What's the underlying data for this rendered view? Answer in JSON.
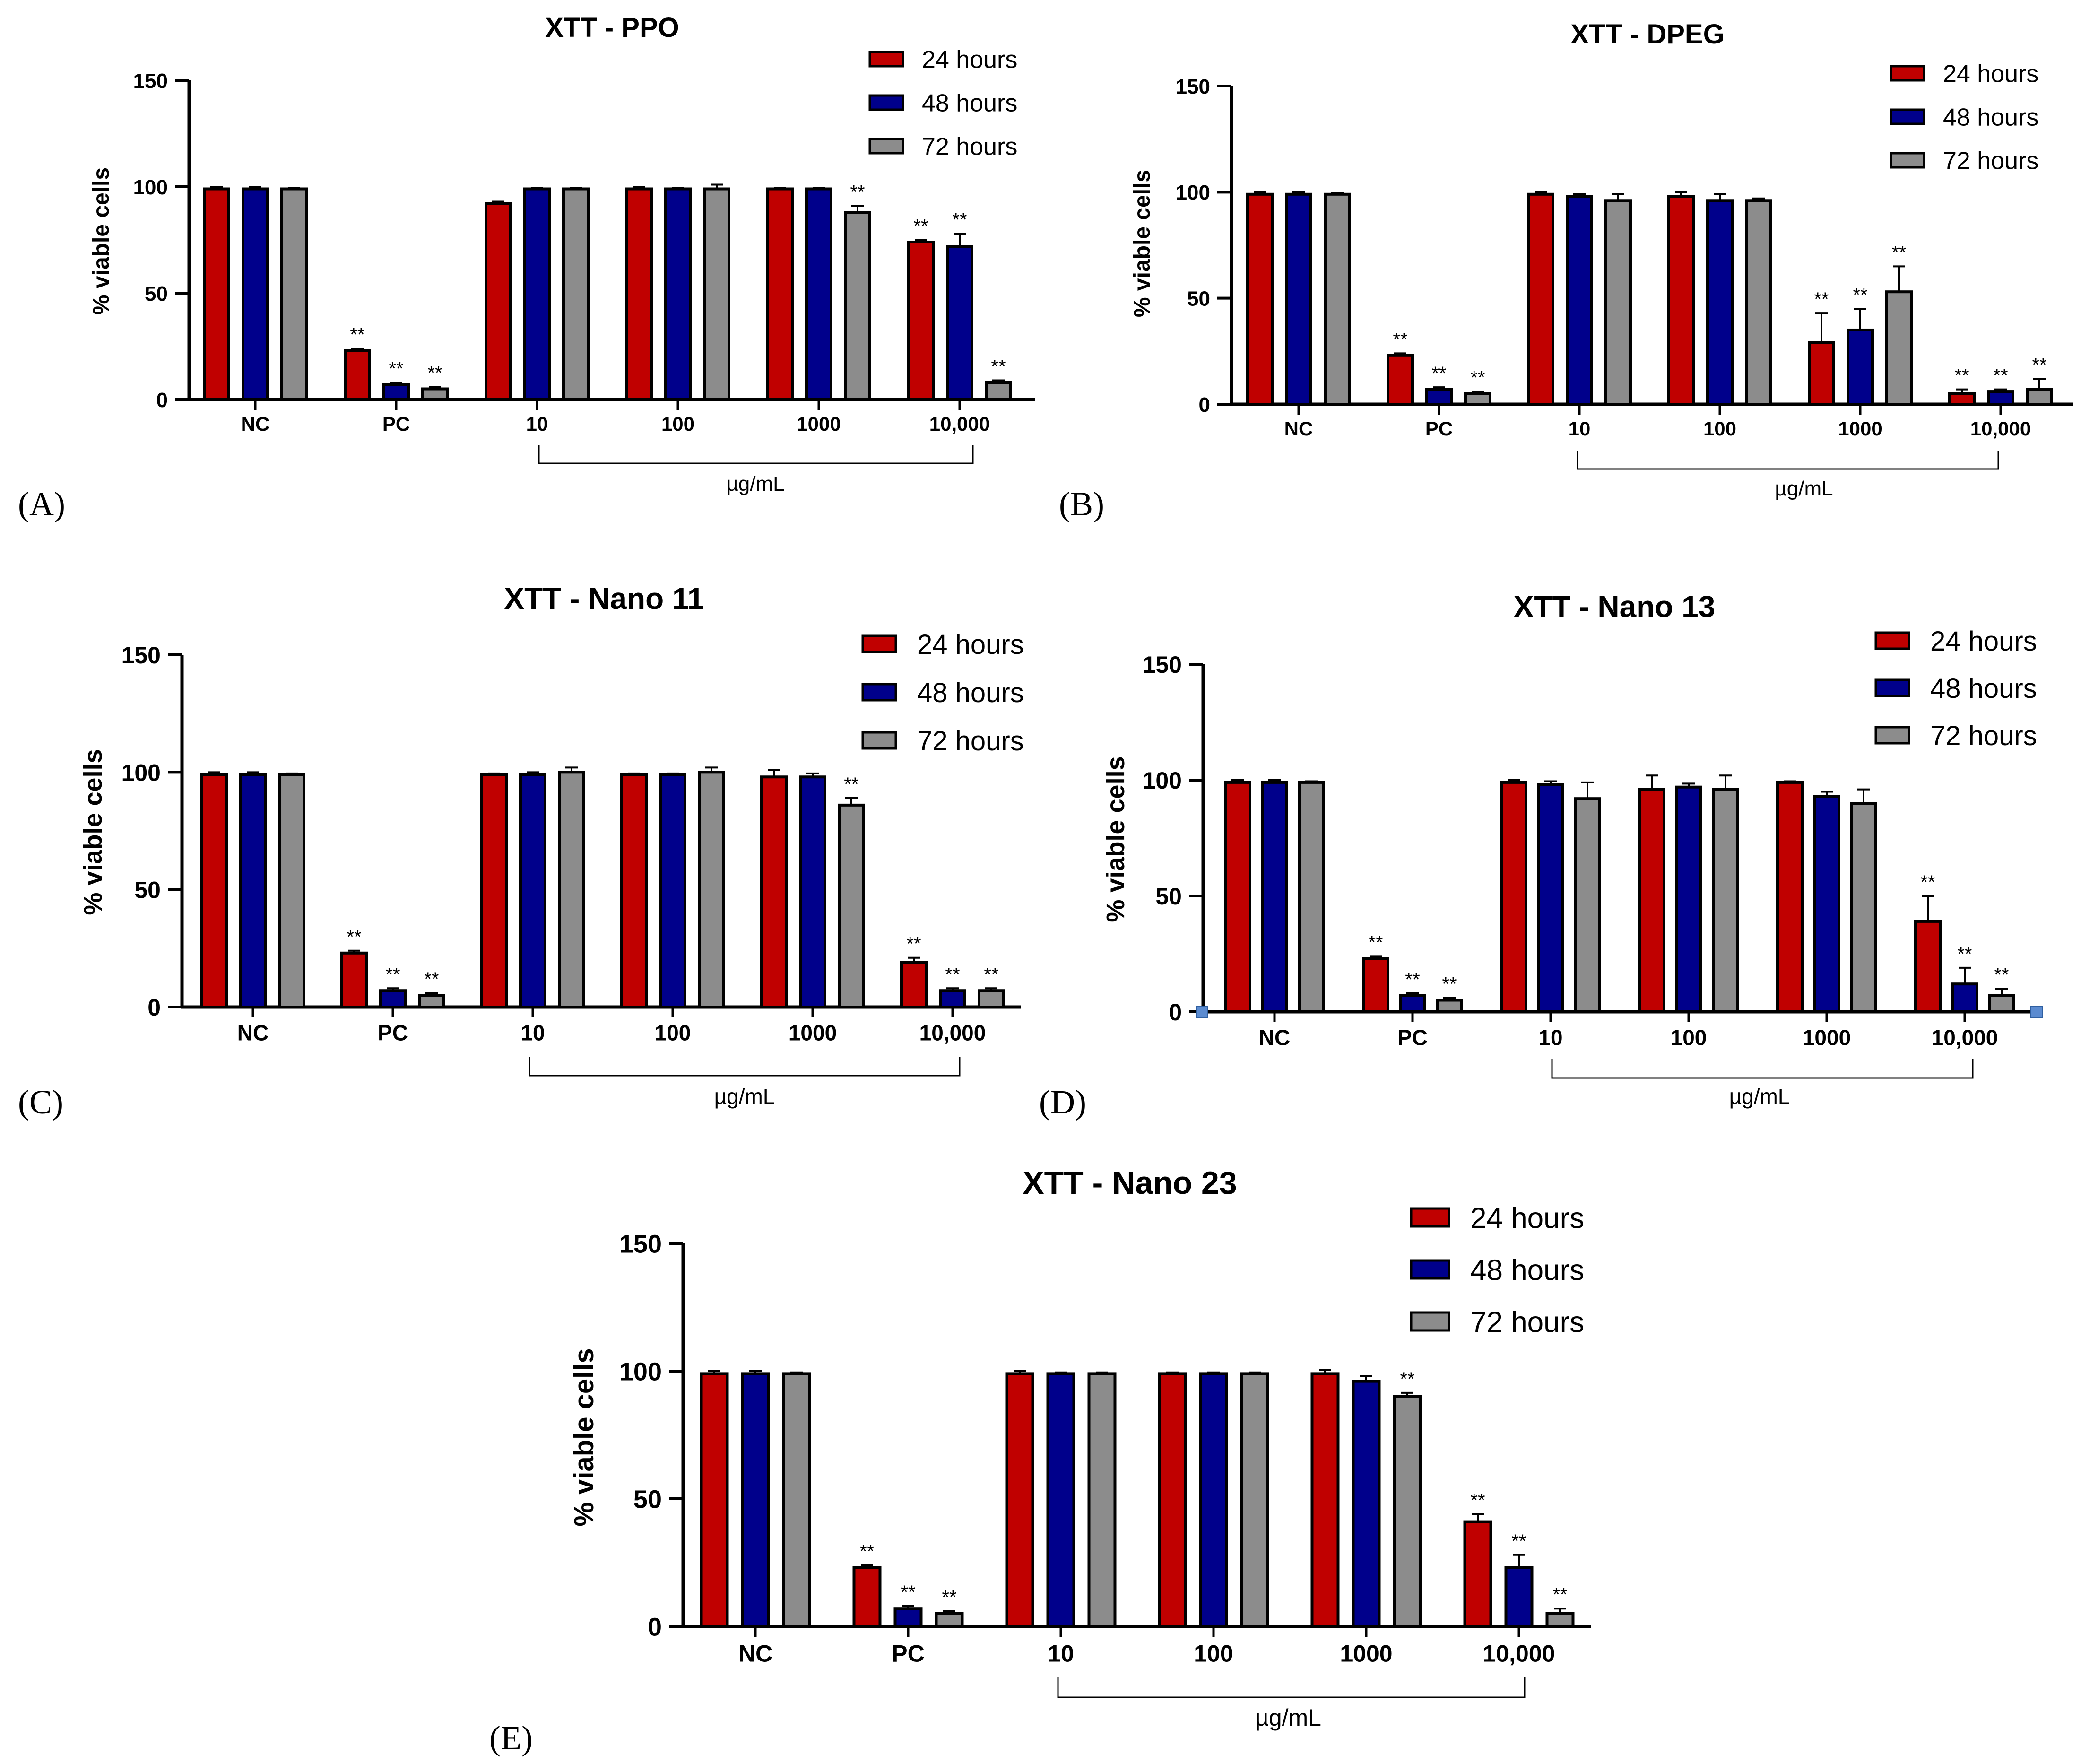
{
  "chart_data": [
    {
      "type": "bar",
      "panel_label": "(A)",
      "title": "XTT - PPO",
      "ylabel": "% viable cells",
      "xlabel": "µg/mL",
      "ylim": [
        0,
        150
      ],
      "yticks": [
        "0",
        "50",
        "100",
        "150"
      ],
      "categories": [
        "NC",
        "PC",
        "10",
        "100",
        "1000",
        "10,000"
      ],
      "series": [
        {
          "name": "24 hours",
          "color": "#c00000",
          "values": [
            99,
            23,
            92,
            99,
            99,
            74
          ],
          "errors": [
            1,
            1,
            1,
            1,
            0.5,
            1
          ],
          "sig": [
            "",
            "**",
            "",
            "",
            "",
            "**"
          ]
        },
        {
          "name": "48 hours",
          "color": "#00008b",
          "values": [
            99,
            7,
            99,
            99,
            99,
            72
          ],
          "errors": [
            1,
            1,
            0.5,
            0.5,
            0.5,
            6
          ],
          "sig": [
            "",
            "**",
            "",
            "",
            "",
            "**"
          ]
        },
        {
          "name": "72 hours",
          "color": "#8c8c8c",
          "values": [
            99,
            5,
            99,
            99,
            88,
            8
          ],
          "errors": [
            0.5,
            1,
            0.5,
            2,
            3,
            1
          ],
          "sig": [
            "",
            "**",
            "",
            "",
            "**",
            "**"
          ]
        }
      ]
    },
    {
      "type": "bar",
      "panel_label": "(B)",
      "title": "XTT - DPEG",
      "ylabel": "% viable cells",
      "xlabel": "µg/mL",
      "ylim": [
        0,
        150
      ],
      "yticks": [
        "0",
        "50",
        "100",
        "150"
      ],
      "categories": [
        "NC",
        "PC",
        "10",
        "100",
        "1000",
        "10,000"
      ],
      "series": [
        {
          "name": "24 hours",
          "color": "#c00000",
          "values": [
            99,
            23,
            99,
            98,
            29,
            5
          ],
          "errors": [
            1,
            1,
            1,
            2,
            14,
            2
          ],
          "sig": [
            "",
            "**",
            "",
            "",
            "**",
            "**"
          ]
        },
        {
          "name": "48 hours",
          "color": "#00008b",
          "values": [
            99,
            7,
            98,
            96,
            35,
            6
          ],
          "errors": [
            1,
            1,
            1,
            3,
            10,
            1
          ],
          "sig": [
            "",
            "**",
            "",
            "",
            "**",
            "**"
          ]
        },
        {
          "name": "72 hours",
          "color": "#8c8c8c",
          "values": [
            99,
            5,
            96,
            96,
            53,
            7
          ],
          "errors": [
            0.5,
            1,
            3,
            1,
            12,
            5
          ],
          "sig": [
            "",
            "**",
            "",
            "",
            "**",
            "**"
          ]
        }
      ]
    },
    {
      "type": "bar",
      "panel_label": "(C)",
      "title": "XTT - Nano 11",
      "ylabel": "% viable cells",
      "xlabel": "µg/mL",
      "ylim": [
        0,
        150
      ],
      "yticks": [
        "0",
        "50",
        "100",
        "150"
      ],
      "categories": [
        "NC",
        "PC",
        "10",
        "100",
        "1000",
        "10,000"
      ],
      "series": [
        {
          "name": "24 hours",
          "color": "#c00000",
          "values": [
            99,
            23,
            99,
            99,
            98,
            19
          ],
          "errors": [
            1,
            1,
            0.5,
            0.5,
            3,
            2
          ],
          "sig": [
            "",
            "**",
            "",
            "",
            "",
            "**"
          ]
        },
        {
          "name": "48 hours",
          "color": "#00008b",
          "values": [
            99,
            7,
            99,
            99,
            98,
            7
          ],
          "errors": [
            1,
            1,
            1,
            0.5,
            1.5,
            1
          ],
          "sig": [
            "",
            "**",
            "",
            "",
            "",
            "**"
          ]
        },
        {
          "name": "72 hours",
          "color": "#8c8c8c",
          "values": [
            99,
            5,
            100,
            100,
            86,
            7
          ],
          "errors": [
            0.5,
            1,
            2,
            2,
            3,
            1
          ],
          "sig": [
            "",
            "**",
            "",
            "",
            "**",
            "**"
          ]
        }
      ]
    },
    {
      "type": "bar",
      "panel_label": "(D)",
      "title": "XTT - Nano 13",
      "ylabel": "% viable cells",
      "xlabel": "µg/mL",
      "ylim": [
        0,
        150
      ],
      "yticks": [
        "0",
        "50",
        "100",
        "150"
      ],
      "categories": [
        "NC",
        "PC",
        "10",
        "100",
        "1000",
        "10,000"
      ],
      "series": [
        {
          "name": "24 hours",
          "color": "#c00000",
          "values": [
            99,
            23,
            99,
            96,
            99,
            39
          ],
          "errors": [
            1,
            1,
            1,
            6,
            0.5,
            11
          ],
          "sig": [
            "",
            "**",
            "",
            "",
            "",
            "**"
          ]
        },
        {
          "name": "48 hours",
          "color": "#00008b",
          "values": [
            99,
            7,
            98,
            97,
            93,
            12
          ],
          "errors": [
            1,
            1,
            1.5,
            1.5,
            2,
            7
          ],
          "sig": [
            "",
            "**",
            "",
            "",
            "",
            "**"
          ]
        },
        {
          "name": "72 hours",
          "color": "#8c8c8c",
          "values": [
            99,
            5,
            92,
            96,
            90,
            7
          ],
          "errors": [
            0.5,
            1,
            7,
            6,
            6,
            3
          ],
          "sig": [
            "",
            "**",
            "",
            "",
            "",
            "**"
          ]
        }
      ]
    },
    {
      "type": "bar",
      "panel_label": "(E)",
      "title": "XTT - Nano 23",
      "ylabel": "% viable cells",
      "xlabel": "µg/mL",
      "ylim": [
        0,
        150
      ],
      "yticks": [
        "0",
        "50",
        "100",
        "150"
      ],
      "categories": [
        "NC",
        "PC",
        "10",
        "100",
        "1000",
        "10,000"
      ],
      "series": [
        {
          "name": "24 hours",
          "color": "#c00000",
          "values": [
            99,
            23,
            99,
            99,
            99,
            41
          ],
          "errors": [
            1,
            1,
            1,
            0.5,
            1.5,
            3
          ],
          "sig": [
            "",
            "**",
            "",
            "",
            "",
            "**"
          ]
        },
        {
          "name": "48 hours",
          "color": "#00008b",
          "values": [
            99,
            7,
            99,
            99,
            96,
            23
          ],
          "errors": [
            1,
            1,
            0.5,
            0.5,
            2,
            5
          ],
          "sig": [
            "",
            "**",
            "",
            "",
            "",
            "**"
          ]
        },
        {
          "name": "72 hours",
          "color": "#8c8c8c",
          "values": [
            99,
            5,
            99,
            99,
            90,
            5
          ],
          "errors": [
            0.5,
            1,
            0.5,
            0.5,
            1.5,
            2
          ],
          "sig": [
            "",
            "**",
            "",
            "",
            "**",
            "**"
          ]
        }
      ]
    }
  ]
}
